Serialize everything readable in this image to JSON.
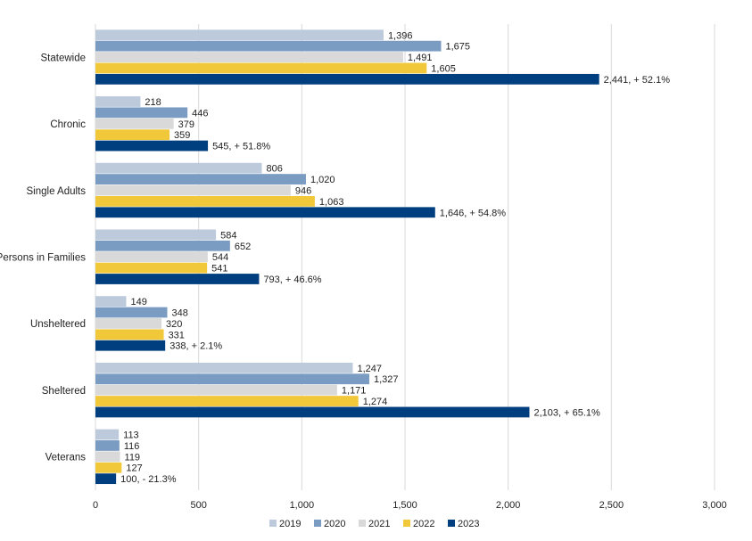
{
  "chart_data": {
    "type": "bar",
    "orientation": "horizontal",
    "title": "",
    "xlabel": "",
    "ylabel": "",
    "xlim": [
      0,
      3000
    ],
    "xticks": [
      0,
      500,
      1000,
      1500,
      2000,
      2500,
      3000
    ],
    "xtick_labels": [
      "0",
      "500",
      "1,000",
      "1,500",
      "2,000",
      "2,500",
      "3,000"
    ],
    "grid": "vertical",
    "legend_position": "bottom",
    "categories": [
      "Statewide",
      "Chronic",
      "Single Adults",
      "Persons in Families",
      "Unsheltered",
      "Sheltered",
      "Veterans"
    ],
    "series": [
      {
        "name": "2019",
        "color": "#bccadb",
        "values": [
          1396,
          218,
          806,
          584,
          149,
          1247,
          113
        ],
        "labels": [
          "1,396",
          "218",
          "806",
          "584",
          "149",
          "1,247",
          "113"
        ]
      },
      {
        "name": "2020",
        "color": "#7a9cc2",
        "values": [
          1675,
          446,
          1020,
          652,
          348,
          1327,
          116
        ],
        "labels": [
          "1,675",
          "446",
          "1,020",
          "652",
          "348",
          "1,327",
          "116"
        ]
      },
      {
        "name": "2021",
        "color": "#d9d9d9",
        "values": [
          1491,
          379,
          946,
          544,
          320,
          1171,
          119
        ],
        "labels": [
          "1,491",
          "379",
          "946",
          "544",
          "320",
          "1,171",
          "119"
        ]
      },
      {
        "name": "2022",
        "color": "#f2c83b",
        "values": [
          1605,
          359,
          1063,
          541,
          331,
          1274,
          127
        ],
        "labels": [
          "1,605",
          "359",
          "1,063",
          "541",
          "331",
          "1,274",
          "127"
        ]
      },
      {
        "name": "2023",
        "color": "#003f7f",
        "values": [
          2441,
          545,
          1646,
          793,
          338,
          2103,
          100
        ],
        "labels": [
          "2,441, + 52.1%",
          "545, + 51.8%",
          "1,646, + 54.8%",
          "793, + 46.6%",
          "338, + 2.1%",
          "2,103, + 65.1%",
          "100, - 21.3%"
        ]
      }
    ]
  }
}
